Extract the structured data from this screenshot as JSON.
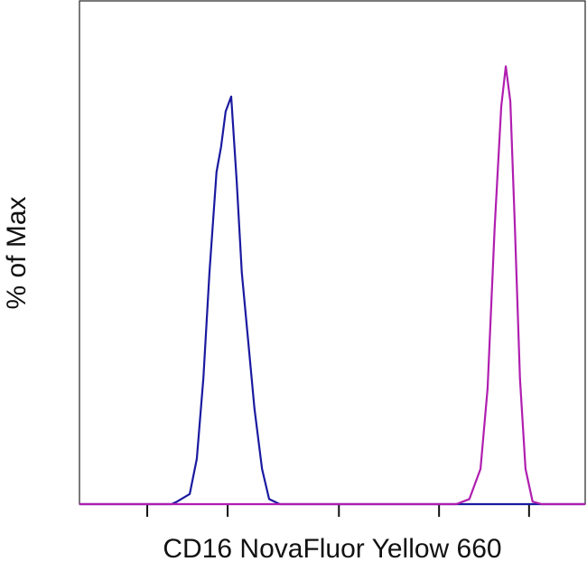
{
  "chart_data": {
    "type": "line",
    "x_label": "CD16 NovaFluor Yellow 660",
    "y_label": "% of Max",
    "xlim": [
      0,
      100
    ],
    "ylim": [
      0,
      100
    ],
    "xticks": [
      13.4,
      29.3,
      51.3,
      71.1,
      88.9
    ],
    "series": [
      {
        "color": "#1a1aa0",
        "x": [
          0,
          18.2,
          19.1,
          21.8,
          23.2,
          24.5,
          25.7,
          27.1,
          28.0,
          28.9,
          30.0,
          31.1,
          32.1,
          33.4,
          34.6,
          36.1,
          37.5,
          39.6,
          100
        ],
        "values": [
          0,
          0,
          0.4,
          2,
          9,
          25,
          46,
          66,
          71,
          78,
          81,
          64,
          46,
          32,
          19,
          7,
          1,
          0,
          0
        ]
      },
      {
        "color": "#b01eb0",
        "x": [
          0,
          74.5,
          77.1,
          79.3,
          80.7,
          82.1,
          83.4,
          84.3,
          85.2,
          86.1,
          87.1,
          88.2,
          89.6,
          91.4,
          100
        ],
        "values": [
          0,
          0,
          1,
          7,
          23,
          55,
          79,
          87,
          80,
          55,
          25,
          7,
          0.5,
          0,
          0
        ]
      }
    ]
  }
}
